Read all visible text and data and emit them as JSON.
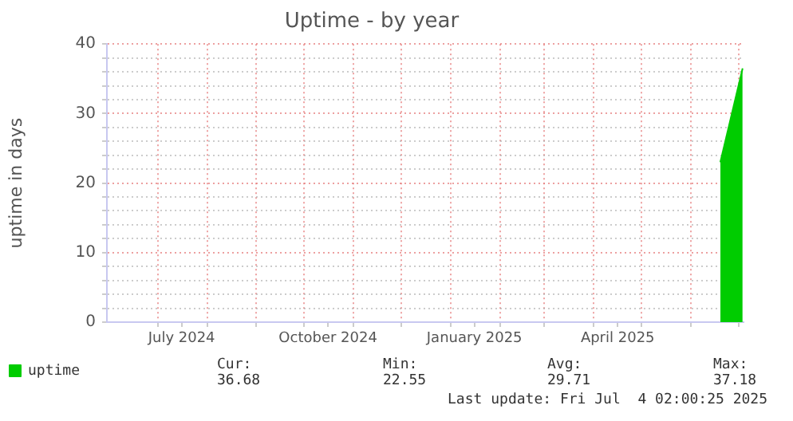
{
  "chart_data": {
    "type": "area",
    "title": "Uptime - by year",
    "ylabel": "uptime in days",
    "series": [
      {
        "name": "uptime",
        "color": "#00cc00",
        "x": [
          "2025-06-19T12:00",
          "2025-07-03T12:00"
        ],
        "values": [
          23,
          36.5
        ]
      }
    ],
    "xlim": [
      "2024-05-30T02:00",
      "2025-07-04T02:00"
    ],
    "xticks": [
      {
        "value": "2024-07-01",
        "label": null
      },
      {
        "value": "2024-07-16",
        "label": "July 2024"
      },
      {
        "value": "2024-08-01",
        "label": null
      },
      {
        "value": "2024-09-01",
        "label": null
      },
      {
        "value": "2024-10-01",
        "label": null
      },
      {
        "value": "2024-10-16",
        "label": "October 2024"
      },
      {
        "value": "2024-11-01",
        "label": null
      },
      {
        "value": "2024-12-01",
        "label": null
      },
      {
        "value": "2025-01-01",
        "label": null
      },
      {
        "value": "2025-01-16",
        "label": "January 2025"
      },
      {
        "value": "2025-02-01",
        "label": null
      },
      {
        "value": "2025-03-01",
        "label": null
      },
      {
        "value": "2025-04-01",
        "label": null
      },
      {
        "value": "2025-04-16",
        "label": "April 2025"
      },
      {
        "value": "2025-05-01",
        "label": null
      },
      {
        "value": "2025-06-01",
        "label": null
      },
      {
        "value": "2025-07-01",
        "label": null
      }
    ],
    "ylim": [
      0,
      40
    ],
    "yticks": [
      0,
      {
        "value": 2,
        "label": null
      },
      {
        "value": 4,
        "label": null
      },
      {
        "value": 6,
        "label": null
      },
      {
        "value": 8,
        "label": null
      },
      10,
      {
        "value": 12,
        "label": null
      },
      {
        "value": 14,
        "label": null
      },
      {
        "value": 16,
        "label": null
      },
      {
        "value": 18,
        "label": null
      },
      20,
      {
        "value": 22,
        "label": null
      },
      {
        "value": 24,
        "label": null
      },
      {
        "value": 26,
        "label": null
      },
      {
        "value": 28,
        "label": null
      },
      30,
      {
        "value": 32,
        "label": null
      },
      {
        "value": 34,
        "label": null
      },
      {
        "value": 36,
        "label": null
      },
      {
        "value": 38,
        "label": null
      },
      40
    ],
    "grid": true,
    "legend": "bottom left",
    "annotations": [
      "Cur:",
      "Min:",
      "Avg:",
      "Max:",
      "36.68",
      "22.55",
      "29.71",
      "37.18",
      "Last update: Fri Jul  4 02:00:25 2025"
    ]
  }
}
